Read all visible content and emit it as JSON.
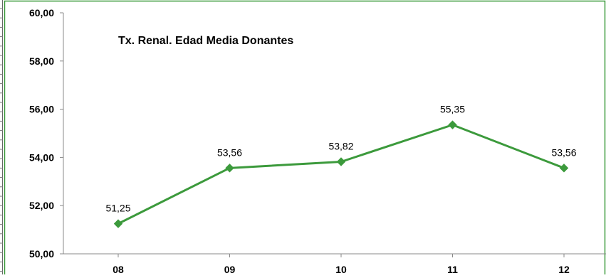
{
  "colors": {
    "series": "#3c9a3c",
    "frame": "#3c9a3c",
    "axis": "#888888",
    "text": "#000000"
  },
  "chart_data": {
    "type": "line",
    "title": "Tx. Renal. Edad Media Donantes",
    "xlabel": "",
    "ylabel": "",
    "categories": [
      "08",
      "09",
      "10",
      "11",
      "12"
    ],
    "series": [
      {
        "values": [
          51.25,
          53.56,
          53.82,
          55.35,
          53.56
        ],
        "labels": [
          "51,25",
          "53,56",
          "53,82",
          "55,35",
          "53,56"
        ]
      }
    ],
    "ylim": [
      50,
      60
    ],
    "yticks": [
      {
        "value": 50,
        "label": "50,00"
      },
      {
        "value": 52,
        "label": "52,00"
      },
      {
        "value": 54,
        "label": "54,00"
      },
      {
        "value": 56,
        "label": "56,00"
      },
      {
        "value": 58,
        "label": "58,00"
      },
      {
        "value": 60,
        "label": "60,00"
      }
    ],
    "grid": false,
    "legend": "none",
    "marker": "diamond"
  }
}
